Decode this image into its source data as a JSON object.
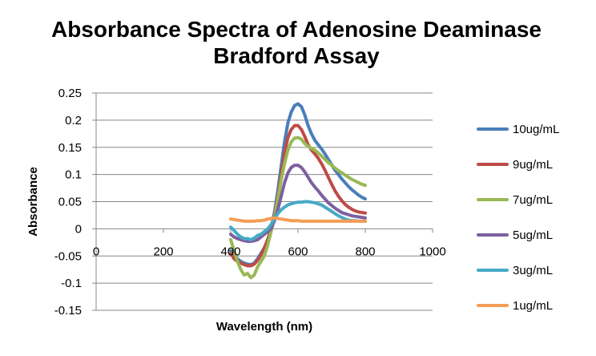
{
  "chart_data": {
    "type": "line",
    "title": "Absorbance Spectra of Adenosine Deaminase Bradford Assay",
    "title_lines": [
      "Absorbance Spectra of Adenosine Deaminase",
      "Bradford Assay"
    ],
    "xlabel": "Wavelength (nm)",
    "ylabel": "Absorbance",
    "xlim": [
      0,
      1000
    ],
    "ylim": [
      -0.15,
      0.25
    ],
    "x_ticks": [
      0,
      200,
      400,
      600,
      800,
      1000
    ],
    "x_tick_labels": [
      "0",
      "200",
      "400",
      "600",
      "800",
      "1000"
    ],
    "y_ticks": [
      -0.15,
      -0.1,
      -0.05,
      0,
      0.05,
      0.1,
      0.15,
      0.2,
      0.25
    ],
    "y_tick_labels": [
      "-0.15",
      "-0.1",
      "-0.05",
      "0",
      "0.05",
      "0.1",
      "0.15",
      "0.2",
      "0.25"
    ],
    "grid": "horizontal",
    "legend": "right",
    "series": [
      {
        "name": "10ug/mL",
        "color": "#4a7ebb",
        "x": [
          400,
          410,
          420,
          430,
          440,
          450,
          460,
          470,
          480,
          490,
          500,
          510,
          520,
          530,
          540,
          550,
          560,
          570,
          580,
          590,
          600,
          610,
          620,
          630,
          640,
          650,
          660,
          670,
          680,
          690,
          700,
          710,
          720,
          730,
          740,
          750,
          760,
          770,
          780,
          790,
          800
        ],
        "y": [
          -0.04,
          -0.05,
          -0.055,
          -0.06,
          -0.063,
          -0.065,
          -0.066,
          -0.063,
          -0.055,
          -0.045,
          -0.035,
          -0.02,
          0.0,
          0.03,
          0.07,
          0.115,
          0.16,
          0.195,
          0.215,
          0.227,
          0.23,
          0.225,
          0.21,
          0.19,
          0.175,
          0.163,
          0.155,
          0.147,
          0.138,
          0.128,
          0.118,
          0.108,
          0.1,
          0.092,
          0.085,
          0.078,
          0.072,
          0.067,
          0.062,
          0.058,
          0.055
        ]
      },
      {
        "name": "9ug/mL",
        "color": "#be4b48",
        "x": [
          400,
          410,
          420,
          430,
          440,
          450,
          460,
          470,
          480,
          490,
          500,
          510,
          520,
          530,
          540,
          550,
          560,
          570,
          580,
          590,
          600,
          610,
          620,
          630,
          640,
          650,
          660,
          670,
          680,
          690,
          700,
          710,
          720,
          730,
          740,
          750,
          760,
          770,
          780,
          790,
          800
        ],
        "y": [
          -0.045,
          -0.055,
          -0.06,
          -0.063,
          -0.066,
          -0.068,
          -0.068,
          -0.065,
          -0.058,
          -0.048,
          -0.035,
          -0.02,
          0.0,
          0.025,
          0.06,
          0.1,
          0.14,
          0.168,
          0.183,
          0.19,
          0.19,
          0.183,
          0.17,
          0.155,
          0.145,
          0.138,
          0.13,
          0.12,
          0.108,
          0.095,
          0.082,
          0.07,
          0.06,
          0.052,
          0.045,
          0.04,
          0.036,
          0.033,
          0.031,
          0.03,
          0.029
        ]
      },
      {
        "name": "7ug/mL",
        "color": "#98b954",
        "x": [
          400,
          410,
          420,
          430,
          440,
          450,
          460,
          470,
          480,
          490,
          500,
          510,
          520,
          530,
          540,
          550,
          560,
          570,
          580,
          590,
          600,
          610,
          620,
          630,
          640,
          650,
          660,
          670,
          680,
          690,
          700,
          710,
          720,
          730,
          740,
          750,
          760,
          770,
          780,
          790,
          800
        ],
        "y": [
          -0.02,
          -0.04,
          -0.06,
          -0.075,
          -0.085,
          -0.082,
          -0.09,
          -0.085,
          -0.07,
          -0.06,
          -0.05,
          -0.03,
          -0.005,
          0.02,
          0.055,
          0.09,
          0.12,
          0.145,
          0.16,
          0.167,
          0.168,
          0.165,
          0.157,
          0.152,
          0.148,
          0.145,
          0.14,
          0.134,
          0.128,
          0.122,
          0.117,
          0.112,
          0.107,
          0.103,
          0.099,
          0.095,
          0.091,
          0.088,
          0.085,
          0.082,
          0.08
        ]
      },
      {
        "name": "5ug/mL",
        "color": "#7d60a0",
        "x": [
          400,
          410,
          420,
          430,
          440,
          450,
          460,
          470,
          480,
          490,
          500,
          510,
          520,
          530,
          540,
          550,
          560,
          570,
          580,
          590,
          600,
          610,
          620,
          630,
          640,
          650,
          660,
          670,
          680,
          690,
          700,
          710,
          720,
          730,
          740,
          750,
          760,
          770,
          780,
          790,
          800
        ],
        "y": [
          -0.01,
          -0.015,
          -0.018,
          -0.02,
          -0.022,
          -0.023,
          -0.023,
          -0.022,
          -0.02,
          -0.015,
          -0.01,
          -0.005,
          0.0,
          0.015,
          0.035,
          0.06,
          0.085,
          0.103,
          0.113,
          0.117,
          0.117,
          0.113,
          0.105,
          0.095,
          0.085,
          0.077,
          0.07,
          0.062,
          0.055,
          0.048,
          0.043,
          0.038,
          0.034,
          0.03,
          0.028,
          0.026,
          0.024,
          0.023,
          0.022,
          0.021,
          0.02
        ]
      },
      {
        "name": "3ug/mL",
        "color": "#46aac5",
        "x": [
          400,
          410,
          420,
          430,
          440,
          450,
          460,
          470,
          480,
          490,
          500,
          510,
          520,
          530,
          540,
          550,
          560,
          570,
          580,
          590,
          600,
          610,
          620,
          630,
          640,
          650,
          660,
          670,
          680,
          690,
          700,
          710,
          720,
          730,
          740,
          750,
          760,
          770,
          780,
          790,
          800
        ],
        "y": [
          0.003,
          -0.003,
          -0.01,
          -0.015,
          -0.018,
          -0.018,
          -0.02,
          -0.017,
          -0.012,
          -0.01,
          -0.005,
          0.0,
          0.008,
          0.018,
          0.028,
          0.035,
          0.04,
          0.044,
          0.046,
          0.048,
          0.049,
          0.049,
          0.05,
          0.05,
          0.049,
          0.048,
          0.046,
          0.044,
          0.04,
          0.036,
          0.032,
          0.028,
          0.024,
          0.021,
          0.018,
          0.016,
          0.015,
          0.015,
          0.014,
          0.014,
          0.014
        ]
      },
      {
        "name": "1ug/mL",
        "color": "#f59d56",
        "x": [
          400,
          410,
          420,
          430,
          440,
          450,
          460,
          470,
          480,
          490,
          500,
          510,
          520,
          530,
          540,
          550,
          560,
          570,
          580,
          590,
          600,
          610,
          620,
          630,
          640,
          650,
          660,
          670,
          680,
          690,
          700,
          710,
          720,
          730,
          740,
          750,
          760,
          770,
          780,
          790,
          800
        ],
        "y": [
          0.018,
          0.017,
          0.016,
          0.015,
          0.014,
          0.014,
          0.014,
          0.014,
          0.015,
          0.015,
          0.016,
          0.018,
          0.019,
          0.02,
          0.019,
          0.018,
          0.017,
          0.016,
          0.015,
          0.015,
          0.015,
          0.014,
          0.014,
          0.014,
          0.014,
          0.014,
          0.014,
          0.014,
          0.014,
          0.014,
          0.014,
          0.014,
          0.014,
          0.014,
          0.014,
          0.014,
          0.014,
          0.014,
          0.014,
          0.014,
          0.014
        ]
      }
    ]
  }
}
